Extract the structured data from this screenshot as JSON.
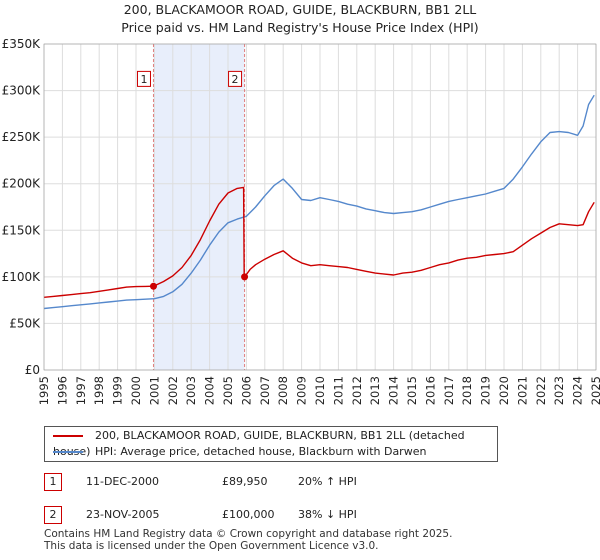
{
  "title_line1": "200, BLACKAMOOR ROAD, GUIDE, BLACKBURN, BB1 2LL",
  "title_line2": "Price paid vs. HM Land Registry's House Price Index (HPI)",
  "colors": {
    "property": "#cc0000",
    "hpi": "#5588cc",
    "shade": "#e8eefb",
    "grid": "#dddddd",
    "marker_line": "#e08080"
  },
  "chart_data": {
    "type": "line",
    "xlim": [
      1995,
      2025
    ],
    "ylim": [
      0,
      350000
    ],
    "y_ticks": [
      0,
      50000,
      100000,
      150000,
      200000,
      250000,
      300000,
      350000
    ],
    "y_tick_labels": [
      "£0",
      "£50K",
      "£100K",
      "£150K",
      "£200K",
      "£250K",
      "£300K",
      "£350K"
    ],
    "x_ticks": [
      1995,
      1996,
      1997,
      1998,
      1999,
      2000,
      2001,
      2002,
      2003,
      2004,
      2005,
      2006,
      2007,
      2008,
      2009,
      2010,
      2011,
      2012,
      2013,
      2014,
      2015,
      2016,
      2017,
      2018,
      2019,
      2020,
      2021,
      2022,
      2023,
      2024,
      2025
    ],
    "x_tick_labels": [
      "1995",
      "1996",
      "1997",
      "1998",
      "1999",
      "2000",
      "2001",
      "2002",
      "2003",
      "2004",
      "2005",
      "2006",
      "2007",
      "2008",
      "2009",
      "2010",
      "2011",
      "2012",
      "2013",
      "2014",
      "2015",
      "2016",
      "2017",
      "2018",
      "2019",
      "2020",
      "2021",
      "2022",
      "2023",
      "2024",
      "2025"
    ],
    "shaded_range": [
      2000.95,
      2005.9
    ],
    "series": [
      {
        "name": "200, BLACKAMOOR ROAD, GUIDE, BLACKBURN, BB1 2LL (detached house)",
        "color": "#cc0000",
        "x": [
          1995.0,
          1995.5,
          1996.0,
          1996.5,
          1997.0,
          1997.5,
          1998.0,
          1998.5,
          1999.0,
          1999.5,
          2000.0,
          2000.5,
          2000.95,
          2001.5,
          2002.0,
          2002.5,
          2003.0,
          2003.5,
          2004.0,
          2004.5,
          2005.0,
          2005.5,
          2005.85,
          2005.88,
          2005.9,
          2006.2,
          2006.5,
          2007.0,
          2007.5,
          2008.0,
          2008.5,
          2009.0,
          2009.5,
          2010.0,
          2010.5,
          2011.0,
          2011.5,
          2012.0,
          2012.5,
          2013.0,
          2013.5,
          2014.0,
          2014.5,
          2015.0,
          2015.5,
          2016.0,
          2016.5,
          2017.0,
          2017.5,
          2018.0,
          2018.5,
          2019.0,
          2019.5,
          2020.0,
          2020.5,
          2021.0,
          2021.5,
          2022.0,
          2022.5,
          2023.0,
          2023.5,
          2024.0,
          2024.3,
          2024.6,
          2024.9
        ],
        "values": [
          78000,
          79000,
          80000,
          81000,
          82000,
          83000,
          84500,
          86000,
          87500,
          89000,
          89500,
          89800,
          89950,
          95000,
          101000,
          110000,
          123000,
          140000,
          160000,
          178000,
          190000,
          195000,
          196000,
          100000,
          100000,
          108000,
          113000,
          119000,
          124000,
          128000,
          120000,
          115000,
          112000,
          113000,
          112000,
          111000,
          110000,
          108000,
          106000,
          104000,
          103000,
          102000,
          104000,
          105000,
          107000,
          110000,
          113000,
          115000,
          118000,
          120000,
          121000,
          123000,
          124000,
          125000,
          127000,
          134000,
          141000,
          147000,
          153000,
          157000,
          156000,
          155000,
          156000,
          170000,
          180000
        ]
      },
      {
        "name": "HPI: Average price, detached house, Blackburn with Darwen",
        "color": "#5588cc",
        "x": [
          1995.0,
          1995.5,
          1996.0,
          1996.5,
          1997.0,
          1997.5,
          1998.0,
          1998.5,
          1999.0,
          1999.5,
          2000.0,
          2000.5,
          2001.0,
          2001.5,
          2002.0,
          2002.5,
          2003.0,
          2003.5,
          2004.0,
          2004.5,
          2005.0,
          2005.5,
          2006.0,
          2006.5,
          2007.0,
          2007.5,
          2008.0,
          2008.5,
          2009.0,
          2009.5,
          2010.0,
          2010.5,
          2011.0,
          2011.5,
          2012.0,
          2012.5,
          2013.0,
          2013.5,
          2014.0,
          2014.5,
          2015.0,
          2015.5,
          2016.0,
          2016.5,
          2017.0,
          2017.5,
          2018.0,
          2018.5,
          2019.0,
          2019.5,
          2020.0,
          2020.5,
          2021.0,
          2021.5,
          2022.0,
          2022.5,
          2023.0,
          2023.5,
          2024.0,
          2024.3,
          2024.6,
          2024.9
        ],
        "values": [
          66000,
          67000,
          68000,
          69000,
          70000,
          71000,
          72000,
          73000,
          74000,
          75000,
          75500,
          76000,
          76500,
          79000,
          84000,
          92000,
          104000,
          118000,
          134000,
          148000,
          158000,
          162000,
          165000,
          175000,
          187000,
          198000,
          205000,
          195000,
          183000,
          182000,
          185000,
          183000,
          181000,
          178000,
          176000,
          173000,
          171000,
          169000,
          168000,
          169000,
          170000,
          172000,
          175000,
          178000,
          181000,
          183000,
          185000,
          187000,
          189000,
          192000,
          195000,
          205000,
          218000,
          232000,
          245000,
          255000,
          256000,
          255000,
          252000,
          262000,
          285000,
          295000
        ]
      }
    ],
    "transactions": [
      {
        "label": "1",
        "x": 2000.95,
        "value": 89950
      },
      {
        "label": "2",
        "x": 2005.9,
        "value": 100000
      }
    ],
    "marker_label_value": 312000
  },
  "legend": {
    "property_label": "200, BLACKAMOOR ROAD, GUIDE, BLACKBURN, BB1 2LL (detached house)",
    "hpi_label": "HPI: Average price, detached house, Blackburn with Darwen"
  },
  "transactions_table": [
    {
      "num": "1",
      "date": "11-DEC-2000",
      "price": "£89,950",
      "delta": "20% ↑ HPI"
    },
    {
      "num": "2",
      "date": "23-NOV-2005",
      "price": "£100,000",
      "delta": "38% ↓ HPI"
    }
  ],
  "footer_line1": "Contains HM Land Registry data © Crown copyright and database right 2025.",
  "footer_line2": "This data is licensed under the Open Government Licence v3.0."
}
